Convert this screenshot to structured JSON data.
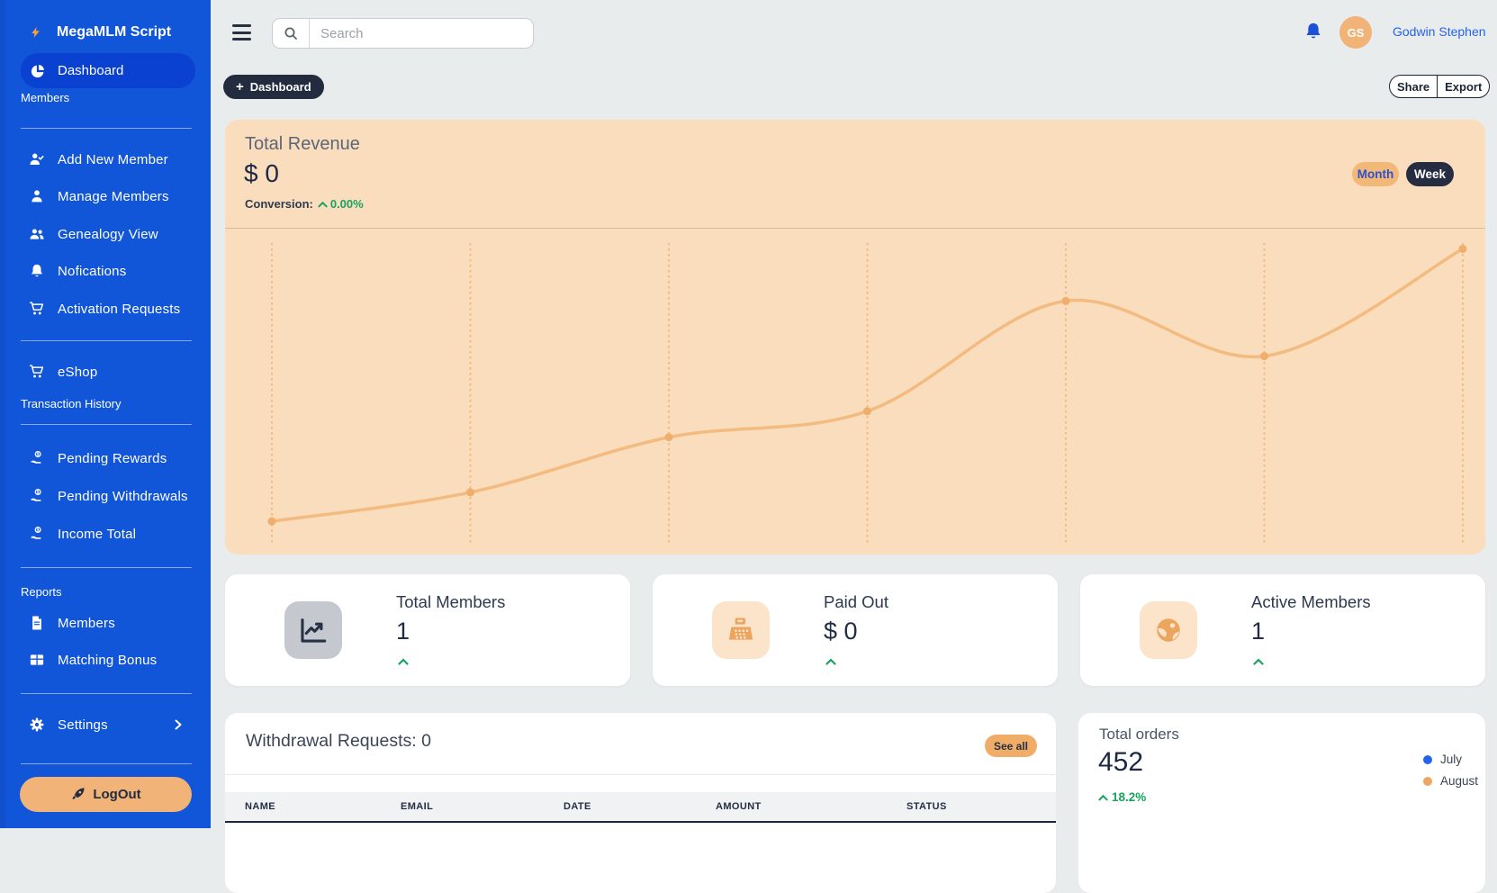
{
  "sidebar": {
    "brand": "MegaMLM Script",
    "dashboard": "Dashboard",
    "members_section": "Members",
    "items": [
      "Add New Member",
      "Manage Members",
      "Genealogy View",
      "Nofications",
      "Activation Requests"
    ],
    "eshop": "eShop",
    "transaction_section": "Transaction History",
    "transaction_items": [
      "Pending Rewards",
      "Pending Withdrawals",
      "Income Total"
    ],
    "reports_section": "Reports",
    "report_items": [
      "Members",
      "Matching Bonus"
    ],
    "settings": "Settings",
    "logout": "LogOut"
  },
  "topbar": {
    "search_placeholder": "Search",
    "user_initials": "GS",
    "user_name": "Godwin Stephen"
  },
  "page_actions": {
    "dashboard_label": "Dashboard",
    "share_label": "Share",
    "export_label": "Export"
  },
  "revenue": {
    "title": "Total Revenue",
    "value": "$ 0",
    "conversion_label": "Conversion:",
    "conversion_value": "0.00%",
    "month_label": "Month",
    "week_label": "Week"
  },
  "chart_data": {
    "type": "line",
    "title": "Total Revenue trend",
    "x": [
      1,
      2,
      3,
      4,
      5,
      6,
      7
    ],
    "values": [
      4,
      14,
      33,
      42,
      80,
      61,
      98
    ],
    "ylim": [
      0,
      100
    ],
    "xlabel": "",
    "ylabel": "",
    "gridlines": "vertical-dotted",
    "line_color": "#f3bb80",
    "marker_color": "#efae6d",
    "grid_color": "#f2bd85"
  },
  "stats": [
    {
      "title": "Total Members",
      "value": "1"
    },
    {
      "title": "Paid Out",
      "value": "$ 0"
    },
    {
      "title": "Active Members",
      "value": "1"
    }
  ],
  "withdrawals": {
    "title": "Withdrawal Requests: 0",
    "see_all_label": "See all",
    "columns": [
      "NAME",
      "EMAIL",
      "DATE",
      "AMOUNT",
      "STATUS"
    ],
    "rows": []
  },
  "orders": {
    "title": "Total orders",
    "value": "452",
    "change": "18.2%",
    "legend": [
      {
        "label": "July",
        "color": "#2563eb"
      },
      {
        "label": "August",
        "color": "#eda75f"
      }
    ]
  },
  "colors": {
    "sidebar": "#1155d9",
    "sidebar_active": "#0a41d0",
    "accent_orange": "#f1b377",
    "peach_card": "#f9ddbc",
    "navy": "#232c3f",
    "green": "#18a360",
    "link_blue": "#2563eb"
  }
}
